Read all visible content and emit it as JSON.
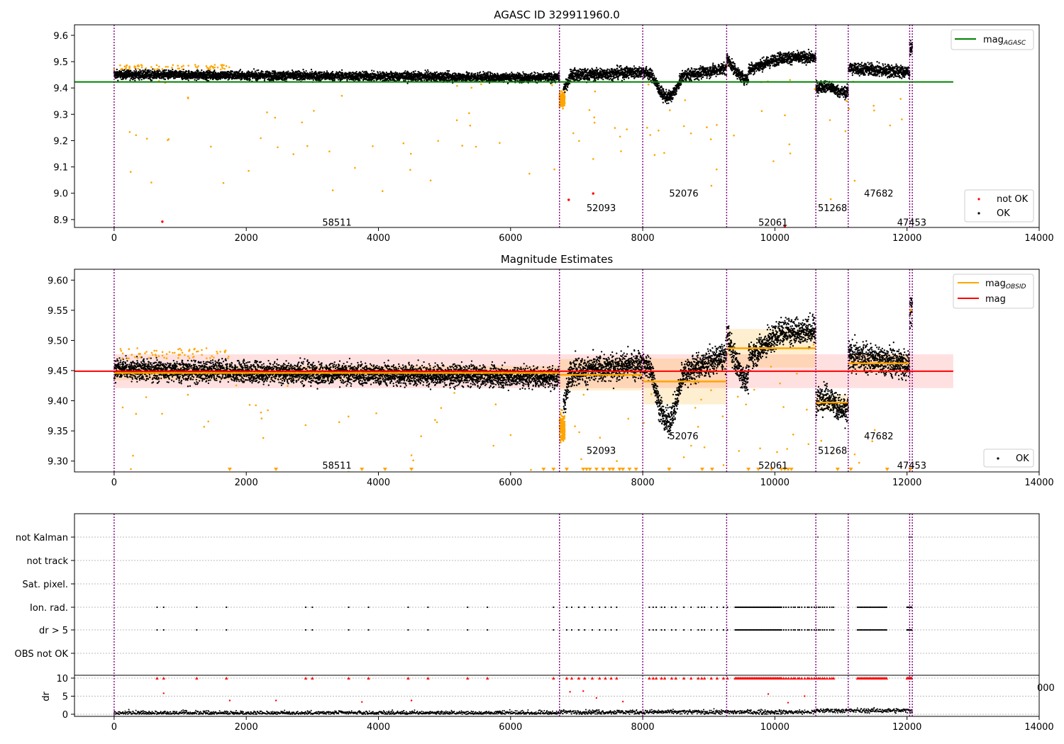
{
  "chart_data": [
    {
      "type": "scatter",
      "title": "AGASC ID 329911960.0",
      "xlim": [
        -600,
        14000
      ],
      "ylim": [
        8.87,
        9.64
      ],
      "x_ticks": [
        "0",
        "2000",
        "4000",
        "6000",
        "8000",
        "10000",
        "12000",
        "14000"
      ],
      "y_ticks": [
        "8.9",
        "9.0",
        "9.1",
        "9.2",
        "9.3",
        "9.4",
        "9.5",
        "9.6"
      ],
      "mag_agasc": 9.423,
      "legend_lines": [
        "mag$_{AGASC}$"
      ],
      "legend_points": [
        "not OK",
        "OK"
      ],
      "not_ok_points": [
        [
          730,
          8.892
        ],
        [
          6880,
          8.975
        ],
        [
          7250,
          8.999
        ],
        [
          10150,
          8.875
        ]
      ],
      "series_colors": {
        "ok": "#000000",
        "excluded": "#ffa500",
        "not_ok": "#ff0000",
        "agasc": "#008000"
      }
    },
    {
      "type": "scatter",
      "title": "Magnitude Estimates",
      "xlim": [
        -600,
        14000
      ],
      "ylim": [
        9.282,
        9.618
      ],
      "x_ticks": [
        "0",
        "2000",
        "4000",
        "6000",
        "8000",
        "10000",
        "12000",
        "14000"
      ],
      "y_ticks": [
        "9.30",
        "9.35",
        "9.40",
        "9.45",
        "9.50",
        "9.55",
        "9.60"
      ],
      "mag": 9.449,
      "mag_band": [
        9.421,
        9.477
      ],
      "legend_lines": [
        "mag$_{OBSID}$",
        "mag"
      ],
      "legend_points": [
        "OK"
      ],
      "series_colors": {
        "ok": "#000000",
        "excluded": "#ffa500",
        "mag": "#ff0000",
        "obsid": "#ffa500"
      }
    },
    {
      "type": "scatter",
      "title": "",
      "xlim": [
        -600,
        14000
      ],
      "flag_rows": [
        "not Kalman",
        "not track",
        "Sat. pixel.",
        "Ion. rad.",
        "dr > 5",
        "OBS not OK"
      ],
      "dr_label": "dr",
      "dr_ticks": [
        "0",
        "5",
        "10"
      ],
      "dr_ylim": [
        0,
        10
      ],
      "x_ticks": [
        "0",
        "2000",
        "4000",
        "6000",
        "8000",
        "10000",
        "12000",
        "14000"
      ],
      "stray_tick": "000"
    }
  ],
  "observations": [
    {
      "obsid": "58511",
      "start": 0,
      "end": 6740,
      "mag": 9.446,
      "std": 0.012
    },
    {
      "obsid": "52093",
      "start": 6740,
      "end": 8000,
      "mag": 9.443,
      "std": 0.026
    },
    {
      "obsid": "52076",
      "start": 8000,
      "end": 9270,
      "mag": 9.432,
      "std": 0.038
    },
    {
      "obsid": "52061",
      "start": 9270,
      "end": 10620,
      "mag": 9.487,
      "std": 0.032
    },
    {
      "obsid": "51268",
      "start": 10620,
      "end": 11110,
      "mag": 9.397,
      "std": 0.013
    },
    {
      "obsid": "47682",
      "start": 11110,
      "end": 12040,
      "mag": 9.462,
      "std": 0.015
    },
    {
      "obsid": "47453",
      "start": 12040,
      "end": 12080,
      "mag": 9.55,
      "std": 0.01
    }
  ]
}
